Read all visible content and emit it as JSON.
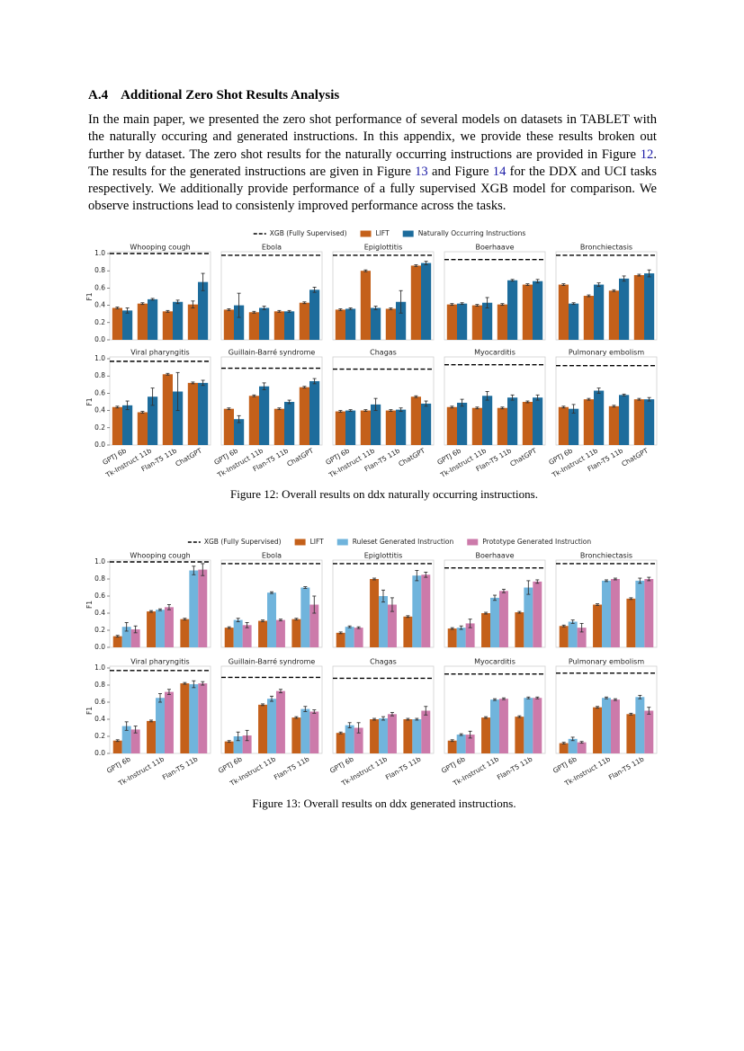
{
  "heading": {
    "number": "A.4",
    "title": "Additional Zero Shot Results Analysis"
  },
  "paragraph": [
    "In the main paper, we presented the zero shot performance of several models on datasets in TABLET with the naturally occuring and generated instructions. In this appendix, we provide these results broken out further by dataset. The zero shot results for the naturally occurring instructions are provided in Figure ",
    "12",
    ". The results for the generated instructions are given in Figure ",
    "13",
    " and Figure ",
    "14",
    " for the DDX and UCI tasks respectively. We additionally provide performance of a fully supervised XGB model for comparison. We observe instructions lead to consistenly improved performance across the tasks."
  ],
  "chart_data": [
    {
      "type": "bar",
      "caption": "Figure 12: Overall results on ddx naturally occurring instructions.",
      "reference_name": "XGB (Fully Supervised)",
      "ylabel": "F1",
      "categories": [
        "GPTJ 6b",
        "Tk-Instruct 11b",
        "Flan-T5 11b",
        "ChatGPT"
      ],
      "series": [
        {
          "name": "LIFT",
          "color": "#c4601a"
        },
        {
          "name": "Naturally Occurring Instructions",
          "color": "#1d6c9c"
        }
      ],
      "ylim": [
        0,
        1
      ],
      "yticks": [
        {
          "value": 0,
          "label": "0.0"
        },
        0.2,
        0.4,
        0.6,
        0.8,
        {
          "value": 1,
          "label": "1.0"
        }
      ],
      "panels": [
        {
          "title": "Whooping cough",
          "reference": 1.0,
          "series": [
            {
              "values": [
                0.37,
                0.42,
                0.33,
                0.41
              ],
              "errors": [
                0.01,
                0.01,
                0.01,
                0.04
              ]
            },
            {
              "values": [
                0.34,
                0.47,
                0.44,
                0.67
              ],
              "errors": [
                0.03,
                0.01,
                0.02,
                0.1
              ]
            }
          ]
        },
        {
          "title": "Ebola",
          "reference": 0.98,
          "series": [
            {
              "values": [
                0.35,
                0.32,
                0.33,
                0.43
              ],
              "errors": [
                0.01,
                0.01,
                0.01,
                0.01
              ]
            },
            {
              "values": [
                0.4,
                0.37,
                0.33,
                0.58
              ],
              "errors": [
                0.14,
                0.02,
                0.01,
                0.03
              ]
            }
          ]
        },
        {
          "title": "Epiglottitis",
          "reference": 0.98,
          "series": [
            {
              "values": [
                0.35,
                0.8,
                0.36,
                0.86
              ],
              "errors": [
                0.01,
                0.01,
                0.01,
                0.01
              ]
            },
            {
              "values": [
                0.36,
                0.37,
                0.44,
                0.89
              ],
              "errors": [
                0.01,
                0.02,
                0.13,
                0.02
              ]
            }
          ]
        },
        {
          "title": "Boerhaave",
          "reference": 0.93,
          "series": [
            {
              "values": [
                0.41,
                0.4,
                0.41,
                0.64
              ],
              "errors": [
                0.01,
                0.01,
                0.01,
                0.01
              ]
            },
            {
              "values": [
                0.42,
                0.43,
                0.69,
                0.68
              ],
              "errors": [
                0.01,
                0.06,
                0.01,
                0.02
              ]
            }
          ]
        },
        {
          "title": "Bronchiectasis",
          "reference": 0.98,
          "series": [
            {
              "values": [
                0.64,
                0.51,
                0.57,
                0.75
              ],
              "errors": [
                0.01,
                0.01,
                0.01,
                0.01
              ]
            },
            {
              "values": [
                0.42,
                0.64,
                0.71,
                0.77
              ],
              "errors": [
                0.01,
                0.02,
                0.03,
                0.04
              ]
            }
          ]
        },
        {
          "title": "Viral pharyngitis",
          "reference": 0.97,
          "series": [
            {
              "values": [
                0.44,
                0.38,
                0.82,
                0.72
              ],
              "errors": [
                0.01,
                0.01,
                0.01,
                0.01
              ]
            },
            {
              "values": [
                0.46,
                0.56,
                0.62,
                0.72
              ],
              "errors": [
                0.05,
                0.1,
                0.22,
                0.03
              ]
            }
          ]
        },
        {
          "title": "Guillain-Barré syndrome",
          "reference": 0.89,
          "series": [
            {
              "values": [
                0.42,
                0.57,
                0.42,
                0.67
              ],
              "errors": [
                0.01,
                0.01,
                0.01,
                0.01
              ]
            },
            {
              "values": [
                0.3,
                0.68,
                0.5,
                0.74
              ],
              "errors": [
                0.04,
                0.04,
                0.02,
                0.03
              ]
            }
          ]
        },
        {
          "title": "Chagas",
          "reference": 0.88,
          "series": [
            {
              "values": [
                0.39,
                0.4,
                0.4,
                0.56
              ],
              "errors": [
                0.01,
                0.01,
                0.01,
                0.01
              ]
            },
            {
              "values": [
                0.4,
                0.47,
                0.41,
                0.48
              ],
              "errors": [
                0.01,
                0.07,
                0.02,
                0.03
              ]
            }
          ]
        },
        {
          "title": "Myocarditis",
          "reference": 0.93,
          "series": [
            {
              "values": [
                0.44,
                0.43,
                0.43,
                0.5
              ],
              "errors": [
                0.01,
                0.01,
                0.01,
                0.01
              ]
            },
            {
              "values": [
                0.49,
                0.57,
                0.55,
                0.55
              ],
              "errors": [
                0.04,
                0.05,
                0.03,
                0.03
              ]
            }
          ]
        },
        {
          "title": "Pulmonary embolism",
          "reference": 0.92,
          "series": [
            {
              "values": [
                0.44,
                0.53,
                0.45,
                0.53
              ],
              "errors": [
                0.01,
                0.01,
                0.01,
                0.01
              ]
            },
            {
              "values": [
                0.42,
                0.63,
                0.58,
                0.53
              ],
              "errors": [
                0.05,
                0.03,
                0.01,
                0.02
              ]
            }
          ]
        }
      ]
    },
    {
      "type": "bar",
      "caption": "Figure 13: Overall results on ddx generated instructions.",
      "reference_name": "XGB (Fully Supervised)",
      "ylabel": "F1",
      "categories": [
        "GPTJ 6b",
        "Tk-Instruct 11b",
        "Flan-T5 11b"
      ],
      "series": [
        {
          "name": "LIFT",
          "color": "#c4601a"
        },
        {
          "name": "Ruleset Generated Instruction",
          "color": "#70b4dc"
        },
        {
          "name": "Prototype Generated Instruction",
          "color": "#cc7aaa"
        }
      ],
      "ylim": [
        0,
        1
      ],
      "yticks": [
        {
          "value": 0,
          "label": "0.0"
        },
        0.2,
        0.4,
        0.6,
        0.8,
        {
          "value": 1,
          "label": "1.0"
        }
      ],
      "panels": [
        {
          "title": "Whooping cough",
          "reference": 1.0,
          "series": [
            {
              "values": [
                0.13,
                0.42,
                0.33
              ],
              "errors": [
                0.01,
                0.01,
                0.01
              ]
            },
            {
              "values": [
                0.24,
                0.44,
                0.9
              ],
              "errors": [
                0.05,
                0.01,
                0.05
              ]
            },
            {
              "values": [
                0.21,
                0.47,
                0.91
              ],
              "errors": [
                0.04,
                0.03,
                0.07
              ]
            }
          ]
        },
        {
          "title": "Ebola",
          "reference": 0.98,
          "series": [
            {
              "values": [
                0.23,
                0.31,
                0.33
              ],
              "errors": [
                0.01,
                0.01,
                0.01
              ]
            },
            {
              "values": [
                0.32,
                0.64,
                0.7
              ],
              "errors": [
                0.02,
                0.01,
                0.01
              ]
            },
            {
              "values": [
                0.26,
                0.32,
                0.5
              ],
              "errors": [
                0.03,
                0.01,
                0.1
              ]
            }
          ]
        },
        {
          "title": "Epiglottitis",
          "reference": 0.98,
          "series": [
            {
              "values": [
                0.17,
                0.8,
                0.36
              ],
              "errors": [
                0.01,
                0.01,
                0.01
              ]
            },
            {
              "values": [
                0.24,
                0.6,
                0.84
              ],
              "errors": [
                0.01,
                0.07,
                0.06
              ]
            },
            {
              "values": [
                0.23,
                0.5,
                0.85
              ],
              "errors": [
                0.01,
                0.08,
                0.03
              ]
            }
          ]
        },
        {
          "title": "Boerhaave",
          "reference": 0.93,
          "series": [
            {
              "values": [
                0.22,
                0.4,
                0.41
              ],
              "errors": [
                0.01,
                0.01,
                0.01
              ]
            },
            {
              "values": [
                0.23,
                0.58,
                0.7
              ],
              "errors": [
                0.02,
                0.03,
                0.08
              ]
            },
            {
              "values": [
                0.28,
                0.66,
                0.77
              ],
              "errors": [
                0.05,
                0.02,
                0.02
              ]
            }
          ]
        },
        {
          "title": "Bronchiectasis",
          "reference": 0.98,
          "series": [
            {
              "values": [
                0.25,
                0.5,
                0.57
              ],
              "errors": [
                0.01,
                0.01,
                0.01
              ]
            },
            {
              "values": [
                0.3,
                0.78,
                0.78
              ],
              "errors": [
                0.02,
                0.01,
                0.03
              ]
            },
            {
              "values": [
                0.23,
                0.8,
                0.8
              ],
              "errors": [
                0.05,
                0.01,
                0.02
              ]
            }
          ]
        },
        {
          "title": "Viral pharyngitis",
          "reference": 0.97,
          "series": [
            {
              "values": [
                0.15,
                0.38,
                0.82
              ],
              "errors": [
                0.01,
                0.01,
                0.01
              ]
            },
            {
              "values": [
                0.32,
                0.65,
                0.81
              ],
              "errors": [
                0.05,
                0.05,
                0.04
              ]
            },
            {
              "values": [
                0.28,
                0.72,
                0.82
              ],
              "errors": [
                0.04,
                0.03,
                0.02
              ]
            }
          ]
        },
        {
          "title": "Guillain-Barré syndrome",
          "reference": 0.89,
          "series": [
            {
              "values": [
                0.14,
                0.57,
                0.42
              ],
              "errors": [
                0.01,
                0.01,
                0.01
              ]
            },
            {
              "values": [
                0.2,
                0.64,
                0.52
              ],
              "errors": [
                0.05,
                0.03,
                0.03
              ]
            },
            {
              "values": [
                0.21,
                0.73,
                0.49
              ],
              "errors": [
                0.06,
                0.02,
                0.02
              ]
            }
          ]
        },
        {
          "title": "Chagas",
          "reference": 0.88,
          "series": [
            {
              "values": [
                0.24,
                0.4,
                0.4
              ],
              "errors": [
                0.01,
                0.01,
                0.01
              ]
            },
            {
              "values": [
                0.33,
                0.41,
                0.4
              ],
              "errors": [
                0.03,
                0.02,
                0.01
              ]
            },
            {
              "values": [
                0.3,
                0.46,
                0.5
              ],
              "errors": [
                0.06,
                0.02,
                0.05
              ]
            }
          ]
        },
        {
          "title": "Myocarditis",
          "reference": 0.93,
          "series": [
            {
              "values": [
                0.15,
                0.42,
                0.43
              ],
              "errors": [
                0.01,
                0.01,
                0.01
              ]
            },
            {
              "values": [
                0.22,
                0.63,
                0.65
              ],
              "errors": [
                0.01,
                0.01,
                0.01
              ]
            },
            {
              "values": [
                0.22,
                0.64,
                0.65
              ],
              "errors": [
                0.04,
                0.01,
                0.01
              ]
            }
          ]
        },
        {
          "title": "Pulmonary embolism",
          "reference": 0.94,
          "series": [
            {
              "values": [
                0.12,
                0.54,
                0.46
              ],
              "errors": [
                0.01,
                0.01,
                0.01
              ]
            },
            {
              "values": [
                0.17,
                0.65,
                0.66
              ],
              "errors": [
                0.02,
                0.01,
                0.02
              ]
            },
            {
              "values": [
                0.13,
                0.63,
                0.5
              ],
              "errors": [
                0.01,
                0.01,
                0.04
              ]
            }
          ]
        }
      ]
    }
  ]
}
